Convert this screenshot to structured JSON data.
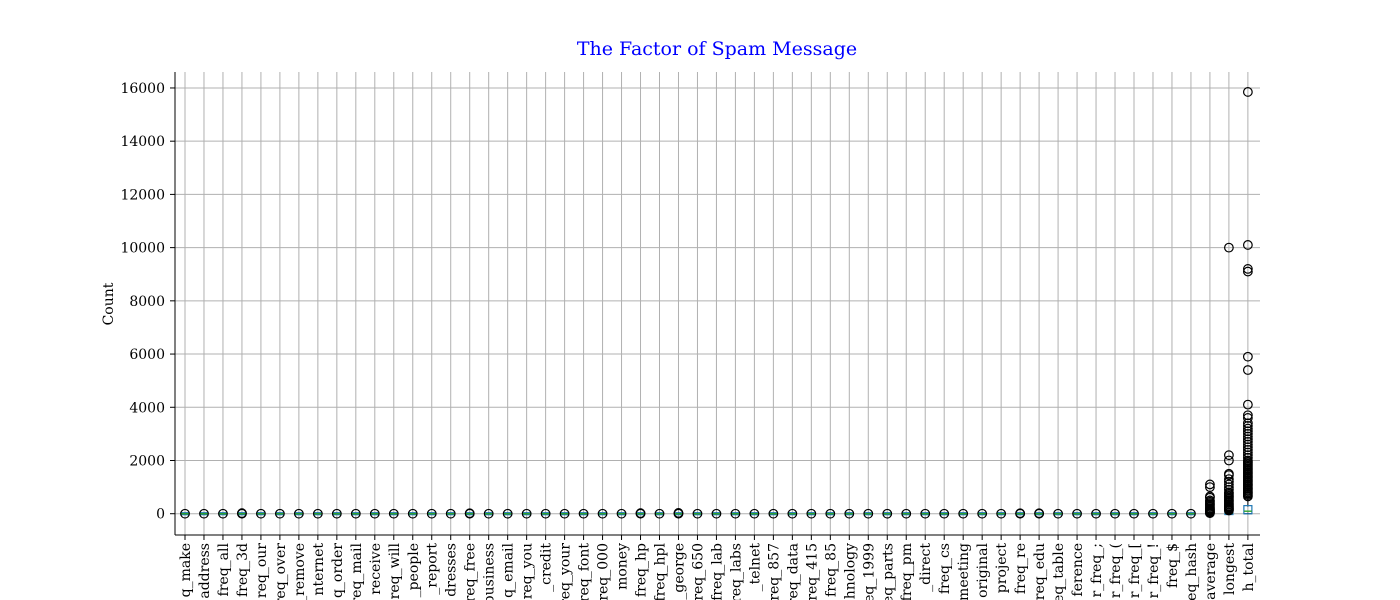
{
  "chart_data": {
    "type": "box",
    "title": "The Factor of Spam Message",
    "xlabel": "",
    "ylabel": "Count",
    "ylim": [
      -800,
      16600
    ],
    "yticks": [
      0,
      2000,
      4000,
      6000,
      8000,
      10000,
      12000,
      14000,
      16000
    ],
    "grid": true,
    "colors": {
      "title": "#0000ff",
      "box": "#1f77b4",
      "median": "#2ca02c",
      "grid": "#b0b0b0"
    },
    "categories": [
      "q_make",
      "address",
      "freq_all",
      "freq_3d",
      "req_our",
      "req_over",
      "_remove",
      "nternet",
      "q_order",
      "req_mail",
      "receive",
      "req_will",
      "_people",
      "_report",
      "dresses",
      "req_free",
      "business",
      "q_email",
      "req_you",
      "_credit",
      "req_your",
      "req_font",
      "req_000",
      "money",
      "freq_hp",
      "freq_hpl",
      "_george",
      "req_650",
      "freq_lab",
      "req_labs",
      "_telnet",
      "req_857",
      "req_data",
      "req_415",
      "freq_85",
      "hnology",
      "req_1999",
      "req_parts",
      "freq_pm",
      "_direct",
      "freq_cs",
      "meeting",
      "original",
      "project",
      "freq_re",
      "req_edu",
      "req_table",
      "ference",
      "r_freq_;",
      "r_freq_(",
      "r_freq_[",
      "r_freq_!",
      "freq_$",
      "req_hash",
      "average",
      "longest",
      "h_total"
    ],
    "boxes": [
      {
        "name": "q_make",
        "q1": 0,
        "median": 0,
        "q3": 0,
        "whislo": 0,
        "whishi": 0,
        "fliers": [
          0
        ]
      },
      {
        "name": "address",
        "q1": 0,
        "median": 0,
        "q3": 0,
        "whislo": 0,
        "whishi": 0,
        "fliers": [
          0
        ]
      },
      {
        "name": "freq_all",
        "q1": 0,
        "median": 0,
        "q3": 0,
        "whislo": 0,
        "whishi": 0,
        "fliers": [
          0
        ]
      },
      {
        "name": "freq_3d",
        "q1": 0,
        "median": 0,
        "q3": 0,
        "whislo": 0,
        "whishi": 0,
        "fliers": [
          0,
          20
        ]
      },
      {
        "name": "req_our",
        "q1": 0,
        "median": 0,
        "q3": 0,
        "whislo": 0,
        "whishi": 0,
        "fliers": [
          0
        ]
      },
      {
        "name": "req_over",
        "q1": 0,
        "median": 0,
        "q3": 0,
        "whislo": 0,
        "whishi": 0,
        "fliers": [
          0
        ]
      },
      {
        "name": "_remove",
        "q1": 0,
        "median": 0,
        "q3": 0,
        "whislo": 0,
        "whishi": 0,
        "fliers": [
          0
        ]
      },
      {
        "name": "nternet",
        "q1": 0,
        "median": 0,
        "q3": 0,
        "whislo": 0,
        "whishi": 0,
        "fliers": [
          0
        ]
      },
      {
        "name": "q_order",
        "q1": 0,
        "median": 0,
        "q3": 0,
        "whislo": 0,
        "whishi": 0,
        "fliers": [
          0
        ]
      },
      {
        "name": "req_mail",
        "q1": 0,
        "median": 0,
        "q3": 0,
        "whislo": 0,
        "whishi": 0,
        "fliers": [
          0
        ]
      },
      {
        "name": "receive",
        "q1": 0,
        "median": 0,
        "q3": 0,
        "whislo": 0,
        "whishi": 0,
        "fliers": [
          0
        ]
      },
      {
        "name": "req_will",
        "q1": 0,
        "median": 0,
        "q3": 0,
        "whislo": 0,
        "whishi": 0,
        "fliers": [
          0
        ]
      },
      {
        "name": "_people",
        "q1": 0,
        "median": 0,
        "q3": 0,
        "whislo": 0,
        "whishi": 0,
        "fliers": [
          0
        ]
      },
      {
        "name": "_report",
        "q1": 0,
        "median": 0,
        "q3": 0,
        "whislo": 0,
        "whishi": 0,
        "fliers": [
          0
        ]
      },
      {
        "name": "dresses",
        "q1": 0,
        "median": 0,
        "q3": 0,
        "whislo": 0,
        "whishi": 0,
        "fliers": [
          0
        ]
      },
      {
        "name": "req_free",
        "q1": 0,
        "median": 0,
        "q3": 0,
        "whislo": 0,
        "whishi": 0,
        "fliers": [
          0,
          15
        ]
      },
      {
        "name": "business",
        "q1": 0,
        "median": 0,
        "q3": 0,
        "whislo": 0,
        "whishi": 0,
        "fliers": [
          0
        ]
      },
      {
        "name": "q_email",
        "q1": 0,
        "median": 0,
        "q3": 0,
        "whislo": 0,
        "whishi": 0,
        "fliers": [
          0
        ]
      },
      {
        "name": "req_you",
        "q1": 0,
        "median": 0,
        "q3": 0,
        "whislo": 0,
        "whishi": 0,
        "fliers": [
          0
        ]
      },
      {
        "name": "_credit",
        "q1": 0,
        "median": 0,
        "q3": 0,
        "whislo": 0,
        "whishi": 0,
        "fliers": [
          0
        ]
      },
      {
        "name": "req_your",
        "q1": 0,
        "median": 0,
        "q3": 0,
        "whislo": 0,
        "whishi": 0,
        "fliers": [
          0
        ]
      },
      {
        "name": "req_font",
        "q1": 0,
        "median": 0,
        "q3": 0,
        "whislo": 0,
        "whishi": 0,
        "fliers": [
          0
        ]
      },
      {
        "name": "req_000",
        "q1": 0,
        "median": 0,
        "q3": 0,
        "whislo": 0,
        "whishi": 0,
        "fliers": [
          0
        ]
      },
      {
        "name": "money",
        "q1": 0,
        "median": 0,
        "q3": 0,
        "whislo": 0,
        "whishi": 0,
        "fliers": [
          0
        ]
      },
      {
        "name": "freq_hp",
        "q1": 0,
        "median": 0,
        "q3": 0,
        "whislo": 0,
        "whishi": 0,
        "fliers": [
          0,
          20
        ]
      },
      {
        "name": "freq_hpl",
        "q1": 0,
        "median": 0,
        "q3": 0,
        "whislo": 0,
        "whishi": 0,
        "fliers": [
          0
        ]
      },
      {
        "name": "_george",
        "q1": 0,
        "median": 0,
        "q3": 0,
        "whislo": 0,
        "whishi": 0,
        "fliers": [
          0,
          30
        ]
      },
      {
        "name": "req_650",
        "q1": 0,
        "median": 0,
        "q3": 0,
        "whislo": 0,
        "whishi": 0,
        "fliers": [
          0
        ]
      },
      {
        "name": "freq_lab",
        "q1": 0,
        "median": 0,
        "q3": 0,
        "whislo": 0,
        "whishi": 0,
        "fliers": [
          0
        ]
      },
      {
        "name": "req_labs",
        "q1": 0,
        "median": 0,
        "q3": 0,
        "whislo": 0,
        "whishi": 0,
        "fliers": [
          0
        ]
      },
      {
        "name": "_telnet",
        "q1": 0,
        "median": 0,
        "q3": 0,
        "whislo": 0,
        "whishi": 0,
        "fliers": [
          0
        ]
      },
      {
        "name": "req_857",
        "q1": 0,
        "median": 0,
        "q3": 0,
        "whislo": 0,
        "whishi": 0,
        "fliers": [
          0
        ]
      },
      {
        "name": "req_data",
        "q1": 0,
        "median": 0,
        "q3": 0,
        "whislo": 0,
        "whishi": 0,
        "fliers": [
          0
        ]
      },
      {
        "name": "req_415",
        "q1": 0,
        "median": 0,
        "q3": 0,
        "whislo": 0,
        "whishi": 0,
        "fliers": [
          0
        ]
      },
      {
        "name": "freq_85",
        "q1": 0,
        "median": 0,
        "q3": 0,
        "whislo": 0,
        "whishi": 0,
        "fliers": [
          0
        ]
      },
      {
        "name": "hnology",
        "q1": 0,
        "median": 0,
        "q3": 0,
        "whislo": 0,
        "whishi": 0,
        "fliers": [
          0
        ]
      },
      {
        "name": "req_1999",
        "q1": 0,
        "median": 0,
        "q3": 0,
        "whislo": 0,
        "whishi": 0,
        "fliers": [
          0
        ]
      },
      {
        "name": "req_parts",
        "q1": 0,
        "median": 0,
        "q3": 0,
        "whislo": 0,
        "whishi": 0,
        "fliers": [
          0
        ]
      },
      {
        "name": "freq_pm",
        "q1": 0,
        "median": 0,
        "q3": 0,
        "whislo": 0,
        "whishi": 0,
        "fliers": [
          0
        ]
      },
      {
        "name": "_direct",
        "q1": 0,
        "median": 0,
        "q3": 0,
        "whislo": 0,
        "whishi": 0,
        "fliers": [
          0
        ]
      },
      {
        "name": "freq_cs",
        "q1": 0,
        "median": 0,
        "q3": 0,
        "whislo": 0,
        "whishi": 0,
        "fliers": [
          0
        ]
      },
      {
        "name": "meeting",
        "q1": 0,
        "median": 0,
        "q3": 0,
        "whislo": 0,
        "whishi": 0,
        "fliers": [
          0
        ]
      },
      {
        "name": "original",
        "q1": 0,
        "median": 0,
        "q3": 0,
        "whislo": 0,
        "whishi": 0,
        "fliers": [
          0
        ]
      },
      {
        "name": "project",
        "q1": 0,
        "median": 0,
        "q3": 0,
        "whislo": 0,
        "whishi": 0,
        "fliers": [
          0
        ]
      },
      {
        "name": "freq_re",
        "q1": 0,
        "median": 0,
        "q3": 0,
        "whislo": 0,
        "whishi": 0,
        "fliers": [
          0,
          15
        ]
      },
      {
        "name": "req_edu",
        "q1": 0,
        "median": 0,
        "q3": 0,
        "whislo": 0,
        "whishi": 0,
        "fliers": [
          0,
          15
        ]
      },
      {
        "name": "req_table",
        "q1": 0,
        "median": 0,
        "q3": 0,
        "whislo": 0,
        "whishi": 0,
        "fliers": [
          0
        ]
      },
      {
        "name": "ference",
        "q1": 0,
        "median": 0,
        "q3": 0,
        "whislo": 0,
        "whishi": 0,
        "fliers": [
          0
        ]
      },
      {
        "name": "r_freq_;",
        "q1": 0,
        "median": 0,
        "q3": 0,
        "whislo": 0,
        "whishi": 0,
        "fliers": [
          0
        ]
      },
      {
        "name": "r_freq_(",
        "q1": 0,
        "median": 0,
        "q3": 0,
        "whislo": 0,
        "whishi": 0,
        "fliers": [
          0
        ]
      },
      {
        "name": "r_freq_[",
        "q1": 0,
        "median": 0,
        "q3": 0,
        "whislo": 0,
        "whishi": 0,
        "fliers": [
          0
        ]
      },
      {
        "name": "r_freq_!",
        "q1": 0,
        "median": 0,
        "q3": 0,
        "whislo": 0,
        "whishi": 0,
        "fliers": [
          0
        ]
      },
      {
        "name": "freq_$",
        "q1": 0,
        "median": 0,
        "q3": 0,
        "whislo": 0,
        "whishi": 0,
        "fliers": [
          0
        ]
      },
      {
        "name": "req_hash",
        "q1": 0,
        "median": 0,
        "q3": 0,
        "whislo": 0,
        "whishi": 0,
        "fliers": [
          0
        ]
      },
      {
        "name": "average",
        "q1": 1,
        "median": 2,
        "q3": 4,
        "whislo": 1,
        "whishi": 8,
        "fliers": [
          20,
          40,
          60,
          80,
          100,
          130,
          160,
          200,
          250,
          300,
          350,
          400,
          450,
          500,
          600,
          650,
          1000,
          1100
        ]
      },
      {
        "name": "longest",
        "q1": 6,
        "median": 15,
        "q3": 43,
        "whislo": 1,
        "whishi": 98,
        "fliers": [
          120,
          150,
          180,
          220,
          260,
          300,
          350,
          400,
          450,
          500,
          550,
          600,
          650,
          700,
          750,
          800,
          900,
          1000,
          1100,
          1200,
          1300,
          1450,
          1500,
          2000,
          2200,
          10000
        ]
      },
      {
        "name": "h_total",
        "q1": 35,
        "median": 95,
        "q3": 266,
        "whislo": 1,
        "whishi": 612,
        "fliers": [
          650,
          700,
          750,
          800,
          850,
          900,
          950,
          1000,
          1050,
          1100,
          1150,
          1200,
          1250,
          1300,
          1350,
          1400,
          1450,
          1500,
          1550,
          1600,
          1650,
          1700,
          1750,
          1800,
          1850,
          1900,
          1950,
          2000,
          2100,
          2200,
          2300,
          2400,
          2500,
          2600,
          2700,
          2800,
          2900,
          3000,
          3100,
          3200,
          3300,
          3400,
          3600,
          3700,
          4100,
          5400,
          5900,
          9100,
          9200,
          10100,
          15850
        ]
      }
    ]
  }
}
